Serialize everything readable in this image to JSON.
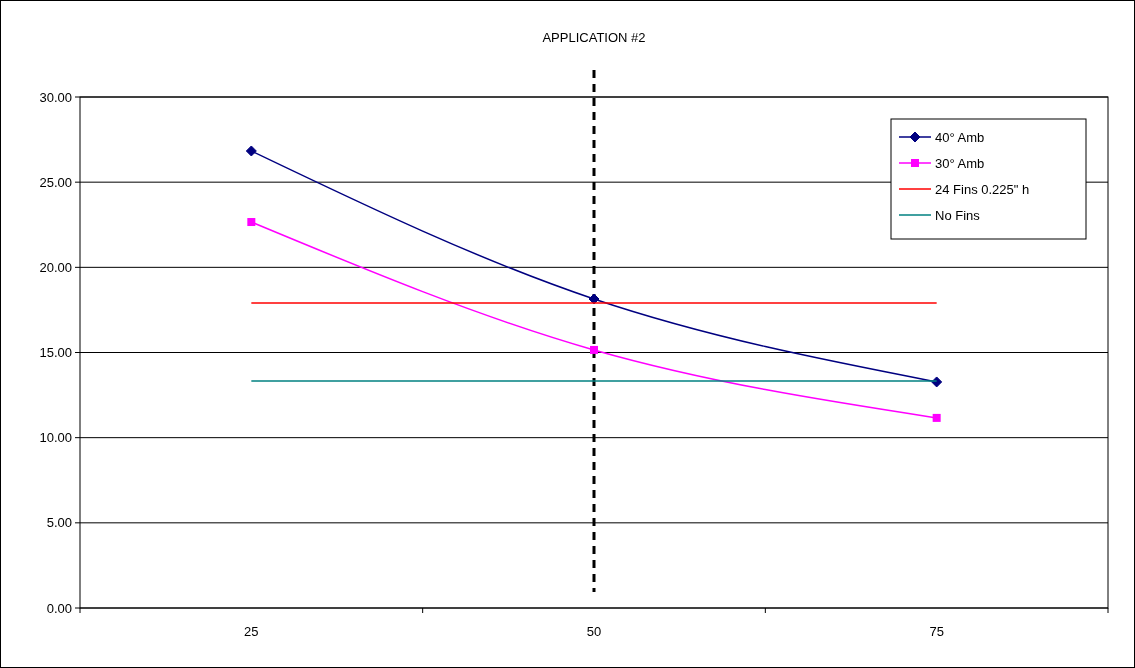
{
  "chart_data": {
    "type": "line",
    "categories": [
      "25",
      "50",
      "75"
    ],
    "series": [
      {
        "name": "40° Amb",
        "color": "#000080",
        "values": [
          26.83,
          18.14,
          13.27
        ],
        "marker": "diamond"
      },
      {
        "name": "30° Amb",
        "color": "#ff00ff",
        "values": [
          22.66,
          15.15,
          11.16
        ],
        "marker": "square"
      },
      {
        "name": "24 Fins 0.225\" h",
        "color": "#ff0000",
        "values": [
          17.91,
          17.91,
          17.91
        ],
        "marker": "none"
      },
      {
        "name": "No Fins",
        "color": "#008080",
        "values": [
          13.33,
          13.33,
          13.33
        ],
        "marker": "none"
      }
    ],
    "ylim": [
      0,
      30
    ],
    "yticks": [
      {
        "value": 0,
        "label": "0.00"
      },
      {
        "value": 5,
        "label": "5.00"
      },
      {
        "value": 10,
        "label": "10.00"
      },
      {
        "value": 15,
        "label": "15.00"
      },
      {
        "value": 20,
        "label": "20.00"
      },
      {
        "value": 25,
        "label": "25.00"
      },
      {
        "value": 30,
        "label": "30.00"
      }
    ],
    "grid": "y",
    "legend": "top right",
    "ref_lines": [
      {
        "axis": "x",
        "value": "50",
        "label": "APPLICATION #2",
        "color": "#000000",
        "line_style": "dashed"
      }
    ]
  }
}
